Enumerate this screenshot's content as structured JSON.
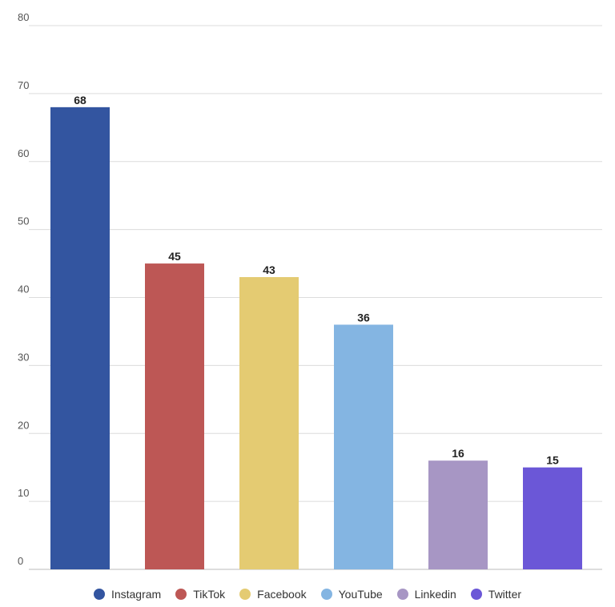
{
  "chart_data": {
    "type": "bar",
    "categories": [
      "Instagram",
      "TikTok",
      "Facebook",
      "YouTube",
      "Linkedin",
      "Twitter"
    ],
    "values": [
      68,
      45,
      43,
      36,
      16,
      15
    ],
    "colors": [
      "#3355a0",
      "#bd5755",
      "#e4cb72",
      "#84b5e2",
      "#a796c4",
      "#6b57d7"
    ],
    "ylim": [
      0,
      80
    ],
    "yticks": [
      0,
      10,
      20,
      30,
      40,
      50,
      60,
      70,
      80
    ],
    "grid": true,
    "data_labels": true,
    "legend": {
      "position": "bottom"
    }
  }
}
